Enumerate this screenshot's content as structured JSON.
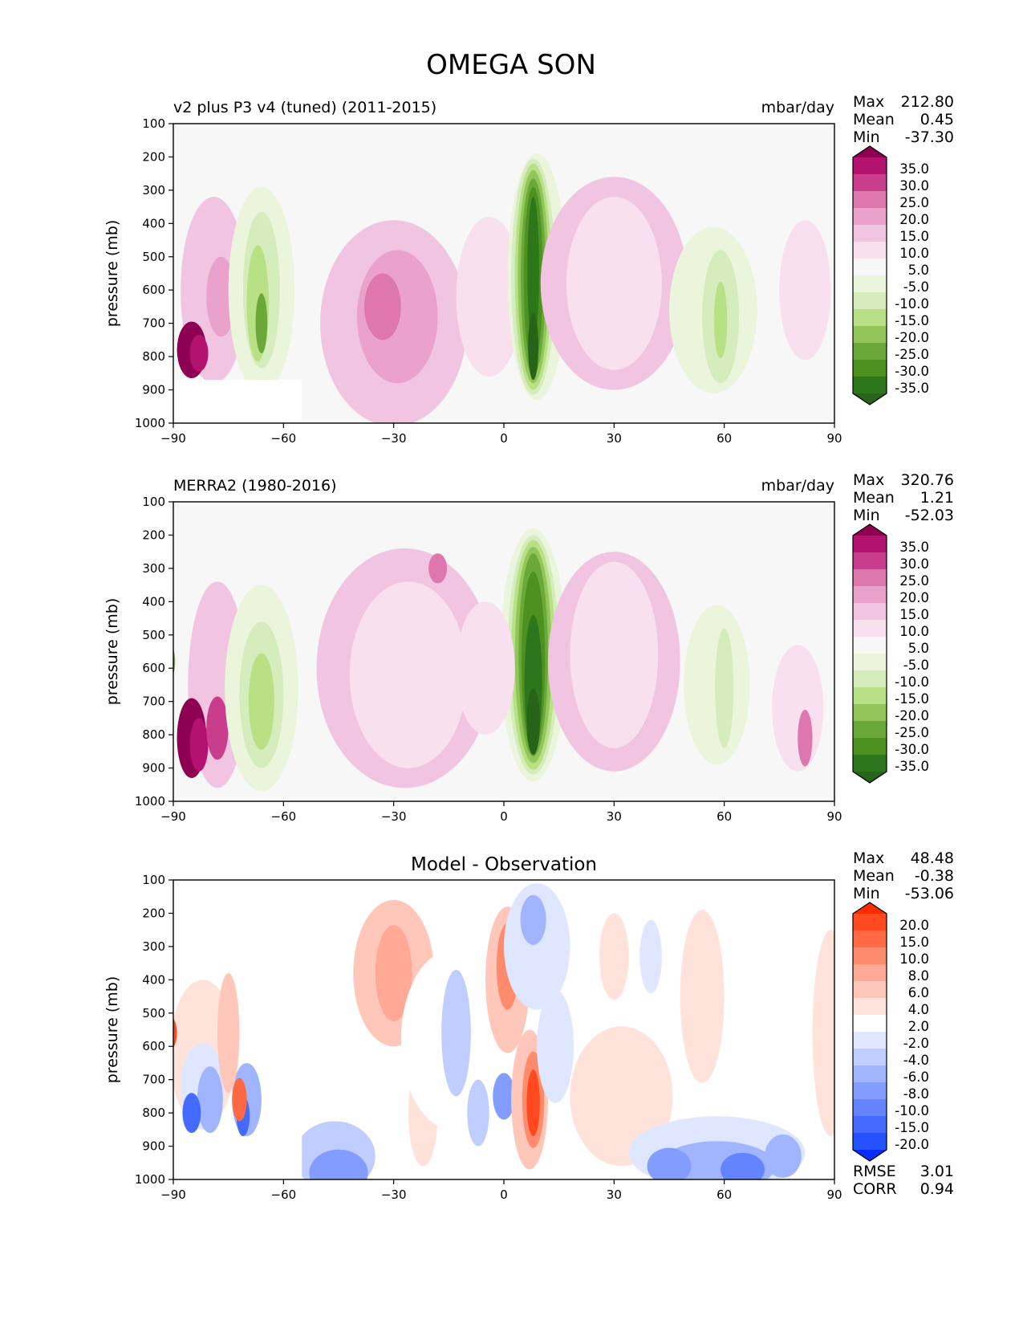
{
  "page": {
    "title": "OMEGA SON"
  },
  "chart_data": [
    {
      "type": "contour",
      "title": "v2 plus P3 v4 (tuned) (2011-2015)",
      "units": "mbar/day",
      "ylabel": "pressure (mb)",
      "xticks": [
        "−90",
        "−60",
        "−30",
        "0",
        "30",
        "60",
        "90"
      ],
      "yticks": [
        "100",
        "200",
        "300",
        "400",
        "500",
        "600",
        "700",
        "800",
        "900",
        "1000"
      ],
      "xlim": [
        -90,
        90
      ],
      "ylim": [
        1000,
        100
      ],
      "stats": [
        {
          "k": "Max",
          "v": "212.80"
        },
        {
          "k": "Mean",
          "v": "0.45"
        },
        {
          "k": "Min",
          "v": "-37.30"
        }
      ],
      "colorbar": {
        "labels": [
          "35.0",
          "30.0",
          "25.0",
          "20.0",
          "15.0",
          "10.0",
          "5.0",
          "-5.0",
          "-10.0",
          "-15.0",
          "-20.0",
          "-25.0",
          "-30.0",
          "-35.0"
        ],
        "colors": [
          "#8e0152",
          "#b3136e",
          "#c93d8d",
          "#de77ae",
          "#eaa2cd",
          "#f1c4e1",
          "#f8e0ee",
          "#f7f7f7",
          "#eaf5dc",
          "#d5ecbc",
          "#b8e186",
          "#92c65a",
          "#6aa83a",
          "#4d9221",
          "#2d761b",
          "#276419"
        ]
      }
    },
    {
      "type": "contour",
      "title": "MERRA2 (1980-2016)",
      "units": "mbar/day",
      "ylabel": "pressure (mb)",
      "xticks": [
        "−90",
        "−60",
        "−30",
        "0",
        "30",
        "60",
        "90"
      ],
      "yticks": [
        "100",
        "200",
        "300",
        "400",
        "500",
        "600",
        "700",
        "800",
        "900",
        "1000"
      ],
      "xlim": [
        -90,
        90
      ],
      "ylim": [
        1000,
        100
      ],
      "stats": [
        {
          "k": "Max",
          "v": "320.76"
        },
        {
          "k": "Mean",
          "v": "1.21"
        },
        {
          "k": "Min",
          "v": "-52.03"
        }
      ],
      "colorbar": {
        "labels": [
          "35.0",
          "30.0",
          "25.0",
          "20.0",
          "15.0",
          "10.0",
          "5.0",
          "-5.0",
          "-10.0",
          "-15.0",
          "-20.0",
          "-25.0",
          "-30.0",
          "-35.0"
        ],
        "colors": [
          "#8e0152",
          "#b3136e",
          "#c93d8d",
          "#de77ae",
          "#eaa2cd",
          "#f1c4e1",
          "#f8e0ee",
          "#f7f7f7",
          "#eaf5dc",
          "#d5ecbc",
          "#b8e186",
          "#92c65a",
          "#6aa83a",
          "#4d9221",
          "#2d761b",
          "#276419"
        ]
      }
    },
    {
      "type": "contour",
      "title": "Model - Observation",
      "units": "",
      "ylabel": "pressure (mb)",
      "xticks": [
        "−90",
        "−60",
        "−30",
        "0",
        "30",
        "60",
        "90"
      ],
      "yticks": [
        "100",
        "200",
        "300",
        "400",
        "500",
        "600",
        "700",
        "800",
        "900",
        "1000"
      ],
      "xlim": [
        -90,
        90
      ],
      "ylim": [
        1000,
        100
      ],
      "stats": [
        {
          "k": "Max",
          "v": "48.48"
        },
        {
          "k": "Mean",
          "v": "-0.38"
        },
        {
          "k": "Min",
          "v": "-53.06"
        }
      ],
      "extra_stats": [
        {
          "k": "RMSE",
          "v": "3.01"
        },
        {
          "k": "CORR",
          "v": "0.94"
        }
      ],
      "colorbar": {
        "labels": [
          "20.0",
          "15.0",
          "10.0",
          "8.0",
          "6.0",
          "4.0",
          "2.0",
          "-2.0",
          "-4.0",
          "-6.0",
          "-8.0",
          "-10.0",
          "-15.0",
          "-20.0"
        ],
        "colors": [
          "#ff2a00",
          "#ff4a1f",
          "#ff6a45",
          "#ff8b6e",
          "#ffa996",
          "#ffc7b9",
          "#ffe3da",
          "#ffffff",
          "#dfe6ff",
          "#c0ceff",
          "#a1b5ff",
          "#829cff",
          "#6383ff",
          "#446aff",
          "#2551ff",
          "#0b2cff"
        ]
      }
    }
  ]
}
